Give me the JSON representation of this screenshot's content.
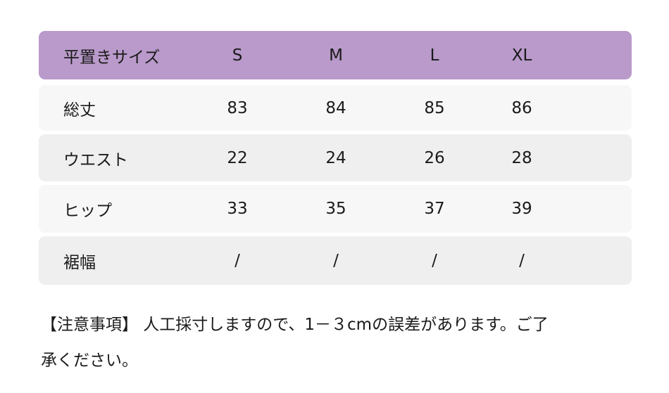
{
  "colors": {
    "header": "#b99aca",
    "row_light": "#f7f7f7",
    "row_dark": "#efefef"
  },
  "table": {
    "header": {
      "label": "平置きサイズ",
      "sizes": [
        "S",
        "M",
        "L",
        "XL"
      ]
    },
    "rows": [
      {
        "label": "総丈",
        "values": [
          "83",
          "84",
          "85",
          "86"
        ]
      },
      {
        "label": "ウエスト",
        "values": [
          "22",
          "24",
          "26",
          "28"
        ]
      },
      {
        "label": "ヒップ",
        "values": [
          "33",
          "35",
          "37",
          "39"
        ]
      },
      {
        "label": "裾幅",
        "values": [
          "/",
          "/",
          "/",
          "/"
        ]
      }
    ]
  },
  "note": {
    "line1": "【注意事項】 人工採寸しますので、1－３cmの誤差があります。ご了",
    "line2": "承ください。"
  }
}
